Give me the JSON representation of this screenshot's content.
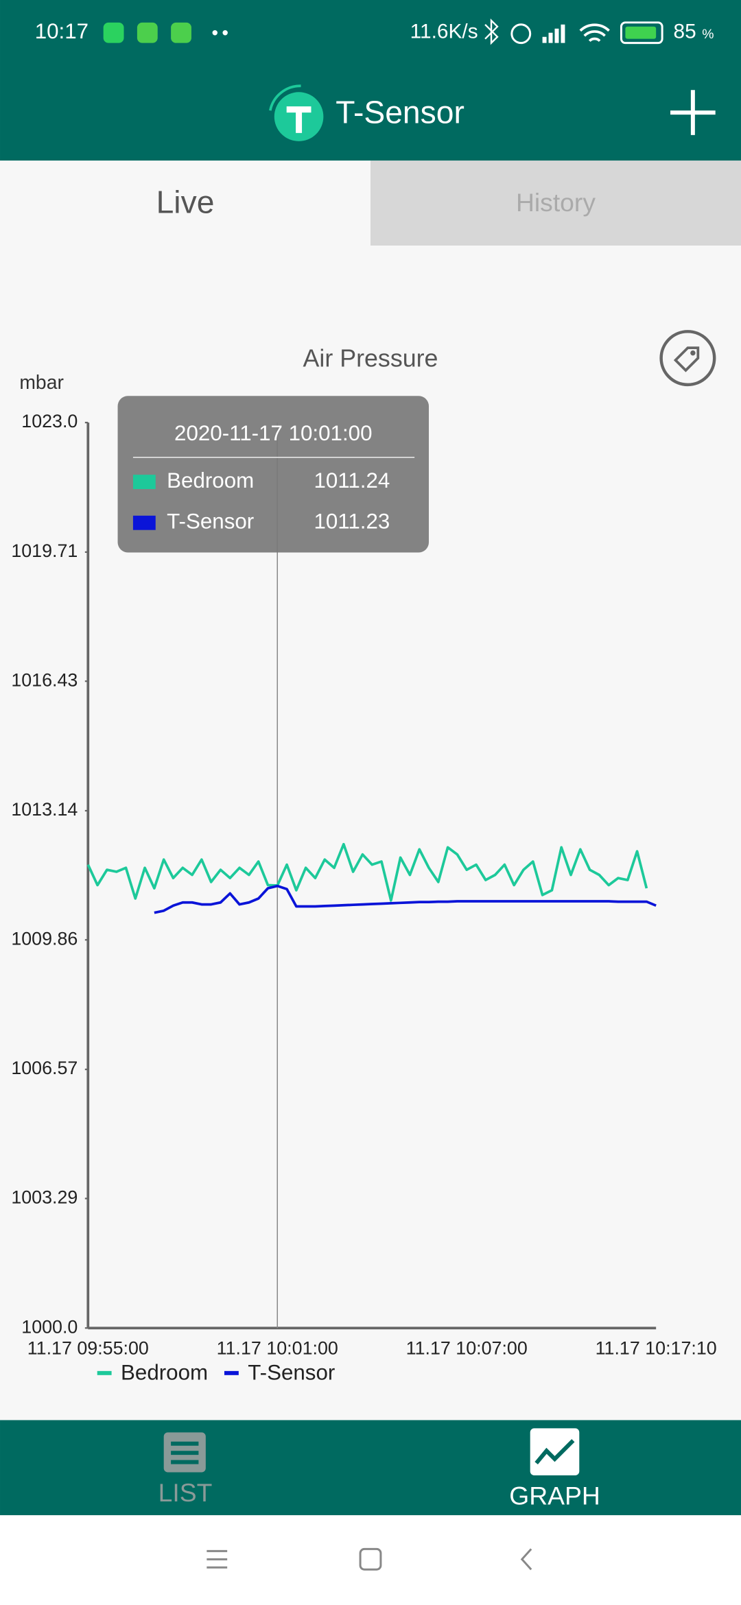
{
  "status_bar": {
    "time": "10:17",
    "speed": "11.6K/s",
    "battery": "85",
    "battery_unit": "%"
  },
  "app_bar": {
    "title": "T-Sensor"
  },
  "tabs": [
    "Live",
    "History"
  ],
  "chart_data": {
    "type": "line",
    "title": "Air Pressure",
    "y_label": "mbar",
    "categories": [
      "11.17 09:55:00",
      null,
      null,
      null,
      null,
      null,
      null,
      null,
      null,
      null,
      null,
      null,
      null,
      null,
      null,
      null,
      null,
      null,
      null,
      null,
      "11.17 10:01:00",
      null,
      null,
      null,
      null,
      null,
      null,
      null,
      null,
      null,
      null,
      null,
      null,
      null,
      null,
      null,
      null,
      null,
      null,
      null,
      "11.17 10:07:00",
      null,
      null,
      null,
      null,
      null,
      null,
      null,
      null,
      null,
      null,
      null,
      null,
      null,
      null,
      null,
      null,
      null,
      null,
      null,
      "11.17 10:17:10"
    ],
    "series": [
      {
        "name": "Bedroom",
        "color": "#1dc99a",
        "values": [
          1011.77,
          1011.25,
          1011.64,
          1011.59,
          1011.69,
          1010.91,
          1011.69,
          1011.17,
          1011.9,
          1011.43,
          1011.69,
          1011.51,
          1011.9,
          1011.33,
          1011.64,
          1011.43,
          1011.69,
          1011.51,
          1011.85,
          1011.25,
          1011.24,
          1011.77,
          1011.12,
          1011.69,
          1011.43,
          1011.9,
          1011.69,
          1012.29,
          1011.59,
          1012.03,
          1011.77,
          1011.85,
          1010.86,
          1011.95,
          1011.51,
          1012.16,
          1011.69,
          1011.33,
          1012.21,
          1012.03,
          1011.64,
          1011.77,
          1011.38,
          1011.51,
          1011.77,
          1011.25,
          1011.64,
          1011.85,
          1011.0,
          1011.12,
          1012.21,
          1011.51,
          1012.16,
          1011.64,
          1011.51,
          1011.25,
          1011.43,
          1011.38,
          1012.11,
          1011.17,
          null
        ]
      },
      {
        "name": "T-Sensor",
        "color": "#0a14d8",
        "values": [
          null,
          null,
          null,
          null,
          null,
          null,
          null,
          1010.55,
          1010.6,
          1010.73,
          1010.81,
          1010.81,
          1010.76,
          1010.76,
          1010.81,
          1011.04,
          1010.76,
          1010.81,
          1010.91,
          1011.17,
          1011.23,
          1011.15,
          1010.71,
          1010.71,
          1010.71,
          1010.72,
          1010.73,
          1010.74,
          1010.75,
          1010.76,
          1010.77,
          1010.78,
          1010.79,
          1010.8,
          1010.81,
          1010.82,
          1010.82,
          1010.83,
          1010.83,
          1010.84,
          1010.84,
          1010.84,
          1010.84,
          1010.84,
          1010.84,
          1010.84,
          1010.84,
          1010.84,
          1010.84,
          1010.84,
          1010.84,
          1010.84,
          1010.84,
          1010.84,
          1010.84,
          1010.84,
          1010.83,
          1010.83,
          1010.83,
          1010.83,
          1010.73
        ]
      }
    ],
    "ylim": [
      1000,
      1023
    ],
    "yticks": [
      {
        "value": 1000,
        "label": "1000.0"
      },
      1003.29,
      1006.57,
      1009.86,
      1013.14,
      1016.43,
      1019.71,
      {
        "value": 1023,
        "label": "1023.0"
      }
    ],
    "grid": false,
    "tooltip": {
      "title": "2020-11-17 10:01:00"
    }
  },
  "bottom_nav": [
    "LIST",
    "GRAPH"
  ]
}
